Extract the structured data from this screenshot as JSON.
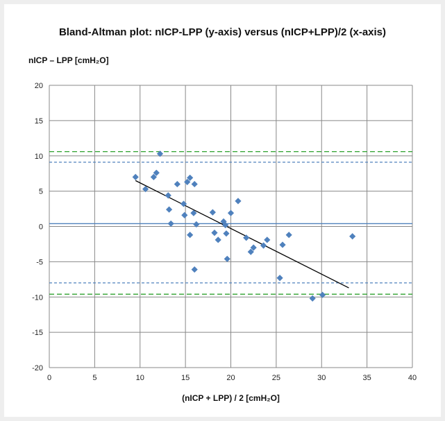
{
  "chart_data": {
    "type": "scatter",
    "title": "Bland-Altman plot: nICP-LPP (y-axis) versus (nICP+LPP)/2 (x-axis)",
    "ylabel": "nICP – LPP  [cmH₂O]",
    "xlabel": "(nICP + LPP) / 2   [cmH₂O]",
    "xlim": [
      0,
      40
    ],
    "ylim": [
      -20,
      20
    ],
    "xticks": [
      0,
      5,
      10,
      15,
      20,
      25,
      30,
      35,
      40
    ],
    "yticks": [
      -20,
      -15,
      -10,
      -5,
      0,
      5,
      10,
      15,
      20
    ],
    "grid": true,
    "marker_color": "#4f81bd",
    "points": [
      {
        "x": 9.5,
        "y": 7.0
      },
      {
        "x": 10.6,
        "y": 5.3
      },
      {
        "x": 11.5,
        "y": 7.0
      },
      {
        "x": 11.8,
        "y": 7.6
      },
      {
        "x": 12.2,
        "y": 10.3
      },
      {
        "x": 13.1,
        "y": 4.4
      },
      {
        "x": 13.2,
        "y": 2.4
      },
      {
        "x": 13.4,
        "y": 0.4
      },
      {
        "x": 14.1,
        "y": 6.0
      },
      {
        "x": 14.8,
        "y": 3.2
      },
      {
        "x": 14.9,
        "y": 1.6
      },
      {
        "x": 15.2,
        "y": 6.3
      },
      {
        "x": 15.5,
        "y": 6.9
      },
      {
        "x": 15.5,
        "y": -1.2
      },
      {
        "x": 15.9,
        "y": 1.9
      },
      {
        "x": 16.0,
        "y": 6.0
      },
      {
        "x": 16.0,
        "y": -6.1
      },
      {
        "x": 16.2,
        "y": 0.3
      },
      {
        "x": 18.0,
        "y": 2.0
      },
      {
        "x": 18.2,
        "y": -0.9
      },
      {
        "x": 18.6,
        "y": -1.9
      },
      {
        "x": 19.2,
        "y": 0.7
      },
      {
        "x": 19.4,
        "y": 0.2
      },
      {
        "x": 19.5,
        "y": -1.0
      },
      {
        "x": 19.6,
        "y": -4.6
      },
      {
        "x": 20.0,
        "y": 1.9
      },
      {
        "x": 20.8,
        "y": 3.6
      },
      {
        "x": 21.7,
        "y": -1.6
      },
      {
        "x": 22.2,
        "y": -3.6
      },
      {
        "x": 22.5,
        "y": -3.0
      },
      {
        "x": 23.6,
        "y": -2.7
      },
      {
        "x": 24.0,
        "y": -1.9
      },
      {
        "x": 25.4,
        "y": -7.3
      },
      {
        "x": 25.7,
        "y": -2.6
      },
      {
        "x": 26.4,
        "y": -1.2
      },
      {
        "x": 29.0,
        "y": -10.2
      },
      {
        "x": 30.1,
        "y": -9.7
      },
      {
        "x": 33.4,
        "y": -1.4
      }
    ],
    "reference_lines": [
      {
        "y": 0.4,
        "color": "#4f81bd",
        "style": "solid"
      },
      {
        "y": 9.1,
        "color": "#4f81bd",
        "style": "dashed"
      },
      {
        "y": -8.0,
        "color": "#4f81bd",
        "style": "dashed"
      },
      {
        "y": 10.6,
        "color": "#2ca02c",
        "style": "dashed"
      },
      {
        "y": -9.6,
        "color": "#2ca02c",
        "style": "dashed"
      }
    ],
    "trendline": {
      "x": [
        9.5,
        33.0
      ],
      "y": [
        6.5,
        -8.7
      ],
      "color": "#000000"
    }
  }
}
